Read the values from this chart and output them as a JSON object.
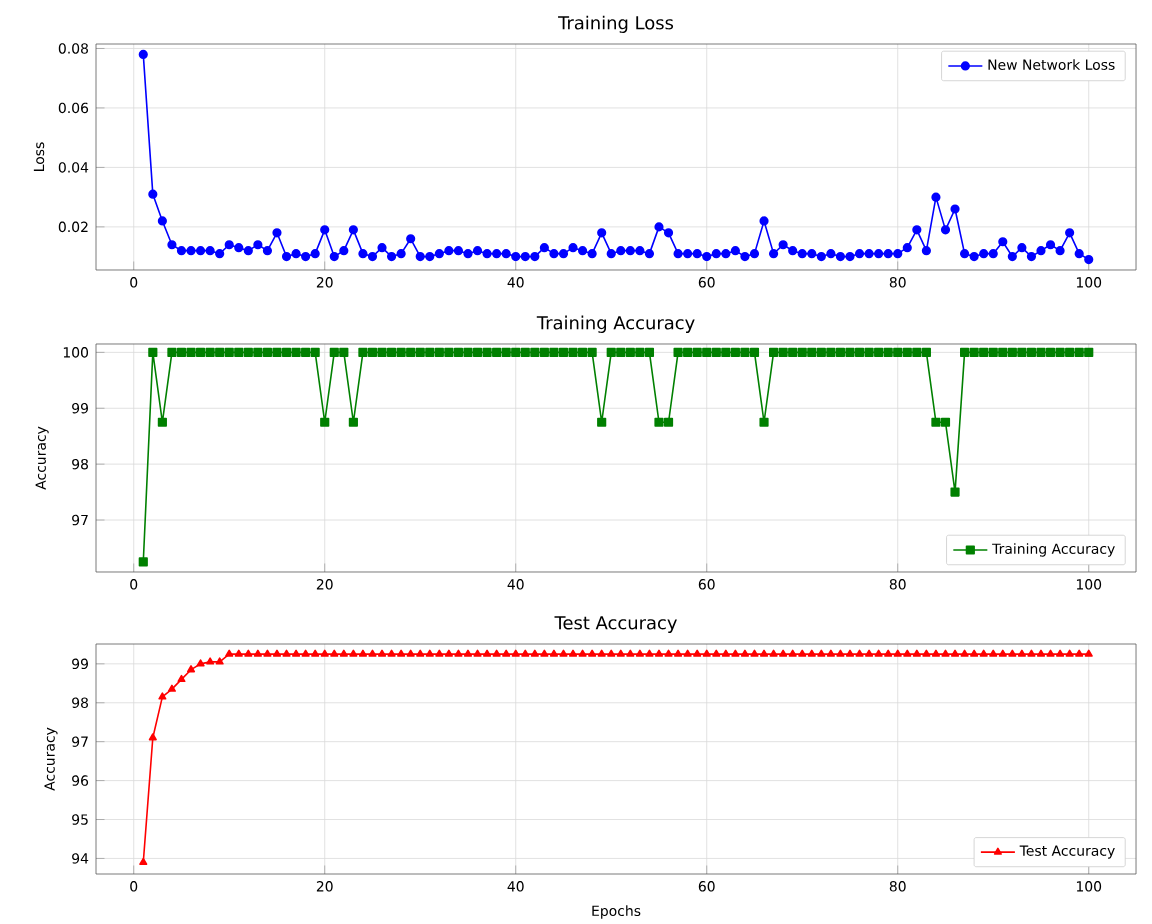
{
  "chart_data": [
    {
      "type": "line",
      "title": "Training Loss",
      "ylabel": "Loss",
      "x": [
        1,
        2,
        3,
        4,
        5,
        6,
        7,
        8,
        9,
        10,
        11,
        12,
        13,
        14,
        15,
        16,
        17,
        18,
        19,
        20,
        21,
        22,
        23,
        24,
        25,
        26,
        27,
        28,
        29,
        30,
        31,
        32,
        33,
        34,
        35,
        36,
        37,
        38,
        39,
        40,
        41,
        42,
        43,
        44,
        45,
        46,
        47,
        48,
        49,
        50,
        51,
        52,
        53,
        54,
        55,
        56,
        57,
        58,
        59,
        60,
        61,
        62,
        63,
        64,
        65,
        66,
        67,
        68,
        69,
        70,
        71,
        72,
        73,
        74,
        75,
        76,
        77,
        78,
        79,
        80,
        81,
        82,
        83,
        84,
        85,
        86,
        87,
        88,
        89,
        90,
        91,
        92,
        93,
        94,
        95,
        96,
        97,
        98,
        99,
        100
      ],
      "series": [
        {
          "name": "New Network Loss",
          "color": "#0000ff",
          "values": [
            0.078,
            0.031,
            0.022,
            0.014,
            0.012,
            0.012,
            0.012,
            0.012,
            0.011,
            0.014,
            0.013,
            0.012,
            0.014,
            0.012,
            0.018,
            0.01,
            0.011,
            0.01,
            0.011,
            0.019,
            0.01,
            0.012,
            0.019,
            0.011,
            0.01,
            0.013,
            0.01,
            0.011,
            0.016,
            0.01,
            0.01,
            0.011,
            0.012,
            0.012,
            0.011,
            0.012,
            0.011,
            0.011,
            0.011,
            0.01,
            0.01,
            0.01,
            0.013,
            0.011,
            0.011,
            0.013,
            0.012,
            0.011,
            0.018,
            0.011,
            0.012,
            0.012,
            0.012,
            0.011,
            0.02,
            0.018,
            0.011,
            0.011,
            0.011,
            0.01,
            0.011,
            0.011,
            0.012,
            0.01,
            0.011,
            0.022,
            0.011,
            0.014,
            0.012,
            0.011,
            0.011,
            0.01,
            0.011,
            0.01,
            0.01,
            0.011,
            0.011,
            0.011,
            0.011,
            0.011,
            0.013,
            0.019,
            0.012,
            0.03,
            0.019,
            0.026,
            0.011,
            0.01,
            0.011,
            0.011,
            0.015,
            0.01,
            0.013,
            0.01,
            0.012,
            0.014,
            0.012,
            0.018,
            0.011,
            0.009
          ]
        }
      ],
      "marker": "circle",
      "xlim": [
        -3.95,
        104.95
      ],
      "ylim": [
        0.0055,
        0.0815
      ],
      "xticks": [
        0,
        20,
        40,
        60,
        80,
        100
      ],
      "yticks": [
        0.02,
        0.04,
        0.06,
        0.08
      ],
      "grid": true,
      "legend": "top right"
    },
    {
      "type": "line",
      "title": "Training Accuracy",
      "ylabel": "Accuracy",
      "x": [
        1,
        2,
        3,
        4,
        5,
        6,
        7,
        8,
        9,
        10,
        11,
        12,
        13,
        14,
        15,
        16,
        17,
        18,
        19,
        20,
        21,
        22,
        23,
        24,
        25,
        26,
        27,
        28,
        29,
        30,
        31,
        32,
        33,
        34,
        35,
        36,
        37,
        38,
        39,
        40,
        41,
        42,
        43,
        44,
        45,
        46,
        47,
        48,
        49,
        50,
        51,
        52,
        53,
        54,
        55,
        56,
        57,
        58,
        59,
        60,
        61,
        62,
        63,
        64,
        65,
        66,
        67,
        68,
        69,
        70,
        71,
        72,
        73,
        74,
        75,
        76,
        77,
        78,
        79,
        80,
        81,
        82,
        83,
        84,
        85,
        86,
        87,
        88,
        89,
        90,
        91,
        92,
        93,
        94,
        95,
        96,
        97,
        98,
        99,
        100
      ],
      "series": [
        {
          "name": "Training Accuracy",
          "color": "#008000",
          "values": [
            96.25,
            100,
            98.75,
            100,
            100,
            100,
            100,
            100,
            100,
            100,
            100,
            100,
            100,
            100,
            100,
            100,
            100,
            100,
            100,
            98.75,
            100,
            100,
            98.75,
            100,
            100,
            100,
            100,
            100,
            100,
            100,
            100,
            100,
            100,
            100,
            100,
            100,
            100,
            100,
            100,
            100,
            100,
            100,
            100,
            100,
            100,
            100,
            100,
            100,
            98.75,
            100,
            100,
            100,
            100,
            100,
            98.75,
            98.75,
            100,
            100,
            100,
            100,
            100,
            100,
            100,
            100,
            100,
            98.75,
            100,
            100,
            100,
            100,
            100,
            100,
            100,
            100,
            100,
            100,
            100,
            100,
            100,
            100,
            100,
            100,
            100,
            98.75,
            98.75,
            97.5,
            100,
            100,
            100,
            100,
            100,
            100,
            100,
            100,
            100,
            100,
            100,
            100,
            100,
            100
          ]
        }
      ],
      "marker": "square",
      "xlim": [
        -3.95,
        104.95
      ],
      "ylim": [
        96.07,
        100.15
      ],
      "xticks": [
        0,
        20,
        40,
        60,
        80,
        100
      ],
      "yticks": [
        97,
        98,
        99,
        100
      ],
      "grid": true,
      "legend": "bottom right"
    },
    {
      "type": "line",
      "title": "Test Accuracy",
      "xlabel": "Epochs",
      "ylabel": "Accuracy",
      "x": [
        1,
        2,
        3,
        4,
        5,
        6,
        7,
        8,
        9,
        10,
        11,
        12,
        13,
        14,
        15,
        16,
        17,
        18,
        19,
        20,
        21,
        22,
        23,
        24,
        25,
        26,
        27,
        28,
        29,
        30,
        31,
        32,
        33,
        34,
        35,
        36,
        37,
        38,
        39,
        40,
        41,
        42,
        43,
        44,
        45,
        46,
        47,
        48,
        49,
        50,
        51,
        52,
        53,
        54,
        55,
        56,
        57,
        58,
        59,
        60,
        61,
        62,
        63,
        64,
        65,
        66,
        67,
        68,
        69,
        70,
        71,
        72,
        73,
        74,
        75,
        76,
        77,
        78,
        79,
        80,
        81,
        82,
        83,
        84,
        85,
        86,
        87,
        88,
        89,
        90,
        91,
        92,
        93,
        94,
        95,
        96,
        97,
        98,
        99,
        100
      ],
      "series": [
        {
          "name": "Test Accuracy",
          "color": "#ff0000",
          "values": [
            93.9,
            97.1,
            98.15,
            98.35,
            98.6,
            98.85,
            99.0,
            99.05,
            99.05,
            99.25,
            99.25,
            99.25,
            99.25,
            99.25,
            99.25,
            99.25,
            99.25,
            99.25,
            99.25,
            99.25,
            99.25,
            99.25,
            99.25,
            99.25,
            99.25,
            99.25,
            99.25,
            99.25,
            99.25,
            99.25,
            99.25,
            99.25,
            99.25,
            99.25,
            99.25,
            99.25,
            99.25,
            99.25,
            99.25,
            99.25,
            99.25,
            99.25,
            99.25,
            99.25,
            99.25,
            99.25,
            99.25,
            99.25,
            99.25,
            99.25,
            99.25,
            99.25,
            99.25,
            99.25,
            99.25,
            99.25,
            99.25,
            99.25,
            99.25,
            99.25,
            99.25,
            99.25,
            99.25,
            99.25,
            99.25,
            99.25,
            99.25,
            99.25,
            99.25,
            99.25,
            99.25,
            99.25,
            99.25,
            99.25,
            99.25,
            99.25,
            99.25,
            99.25,
            99.25,
            99.25,
            99.25,
            99.25,
            99.25,
            99.25,
            99.25,
            99.25,
            99.25,
            99.25,
            99.25,
            99.25,
            99.25,
            99.25,
            99.25,
            99.25,
            99.25,
            99.25,
            99.25,
            99.25,
            99.25,
            99.25
          ]
        }
      ],
      "marker": "triangle",
      "xlim": [
        -3.95,
        104.95
      ],
      "ylim": [
        93.6,
        99.51
      ],
      "xticks": [
        0,
        20,
        40,
        60,
        80,
        100
      ],
      "yticks": [
        94,
        95,
        96,
        97,
        98,
        99
      ],
      "grid": true,
      "legend": "bottom right"
    }
  ]
}
